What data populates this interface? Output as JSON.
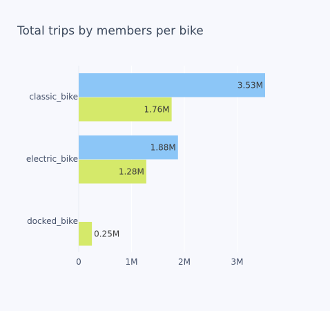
{
  "chart_data": {
    "type": "bar",
    "orientation": "horizontal",
    "title": "Total trips by members per bike",
    "xlabel": "",
    "ylabel": "",
    "categories": [
      "classic_bike",
      "electric_bike",
      "docked_bike"
    ],
    "series": [
      {
        "values": [
          3530000,
          1880000,
          0
        ],
        "labels": [
          "3.53M",
          "1.88M",
          ""
        ],
        "color": "#8cc6f7"
      },
      {
        "values": [
          1760000,
          1280000,
          250000
        ],
        "labels": [
          "1.76M",
          "1.28M",
          "0.25M"
        ],
        "color": "#d5e96a"
      }
    ],
    "xticks": [
      0,
      1000000,
      2000000,
      3000000
    ],
    "xtick_labels": [
      "0",
      "1M",
      "2M",
      "3M"
    ],
    "xlim": [
      0,
      3530000
    ],
    "grid": true,
    "legend": false
  }
}
